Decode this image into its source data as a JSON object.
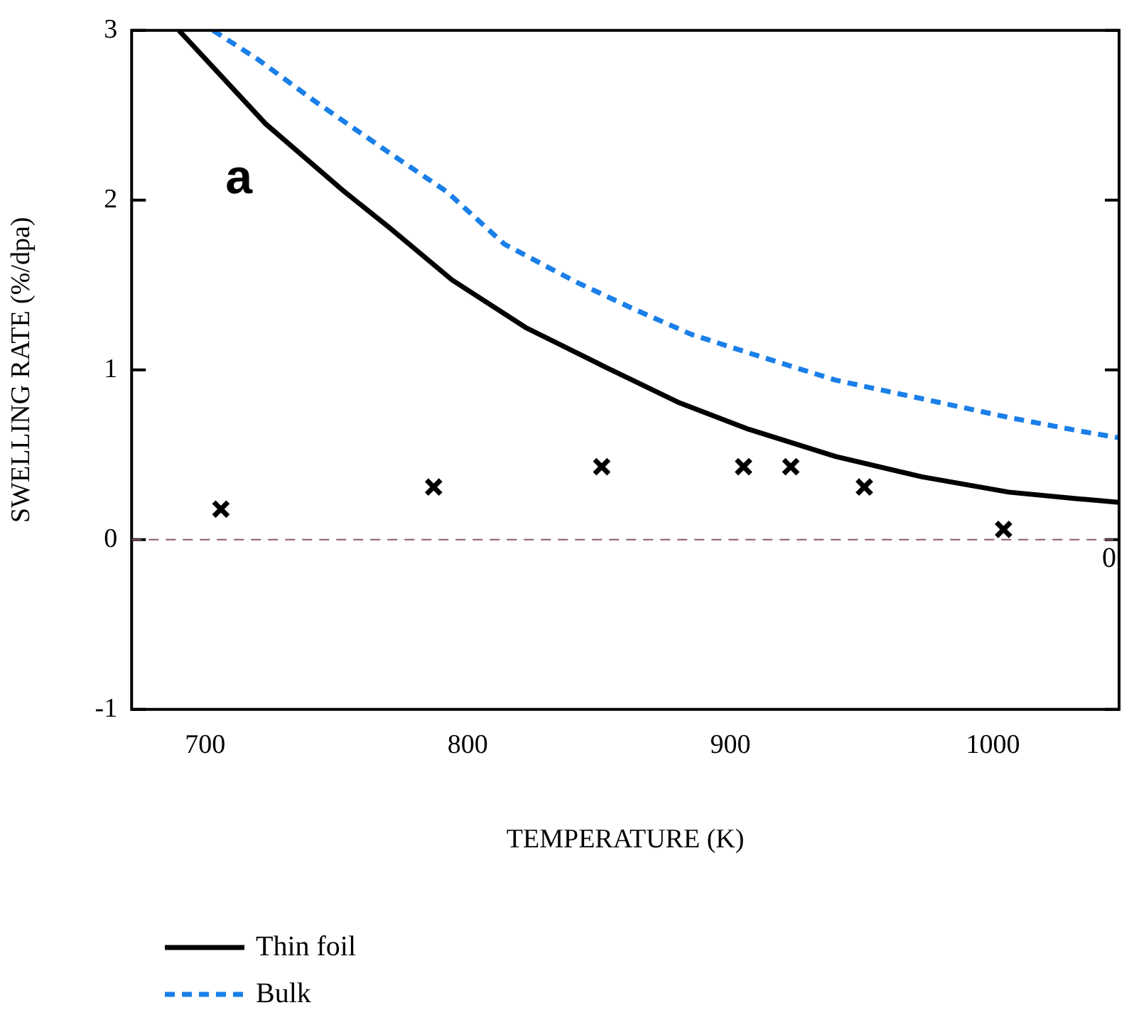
{
  "chart_data": {
    "type": "line",
    "xlabel": "TEMPERATURE (K)",
    "ylabel": "SWELLING RATE (%/dpa)",
    "xlim": [
      672,
      1048
    ],
    "xticks": [
      700,
      800,
      900,
      1000
    ],
    "ylim": [
      -1,
      3
    ],
    "yticks": [
      -1,
      0,
      1,
      2,
      3
    ],
    "grid": false,
    "legend": "bottom left",
    "annotations": [
      "a"
    ],
    "ref_lines": [
      {
        "axis": "y",
        "value": 0,
        "label": "0",
        "color": "#8b5a6b",
        "line_style": "dashed"
      }
    ],
    "series": [
      {
        "name": "Thin foil",
        "type": "line",
        "color": "#000000",
        "line_style": "solid",
        "marker": "none",
        "x": [
          690,
          723,
          753,
          770,
          794,
          822,
          852,
          880,
          907,
          940,
          973,
          1006,
          1033,
          1048
        ],
        "values": [
          3,
          2.45,
          2.05,
          1.84,
          1.53,
          1.25,
          1.02,
          0.81,
          0.65,
          0.49,
          0.37,
          0.28,
          0.24,
          0.22
        ]
      },
      {
        "name": "Bulk",
        "type": "line",
        "color": "#1a7fe8",
        "line_style": "dashed",
        "marker": "none",
        "x": [
          703,
          720,
          742,
          770,
          792,
          814,
          841,
          863,
          885,
          907,
          940,
          973,
          1006,
          1033,
          1048
        ],
        "values": [
          3,
          2.83,
          2.58,
          2.28,
          2.05,
          1.74,
          1.52,
          1.36,
          1.21,
          1.1,
          0.94,
          0.83,
          0.72,
          0.64,
          0.6
        ]
      },
      {
        "type": "scatter",
        "color": "#000000",
        "marker": "cross",
        "x": [
          706,
          787,
          851,
          905,
          923,
          951,
          1004
        ],
        "values": [
          0.18,
          0.31,
          0.43,
          0.43,
          0.43,
          0.31,
          0.06
        ]
      }
    ]
  }
}
